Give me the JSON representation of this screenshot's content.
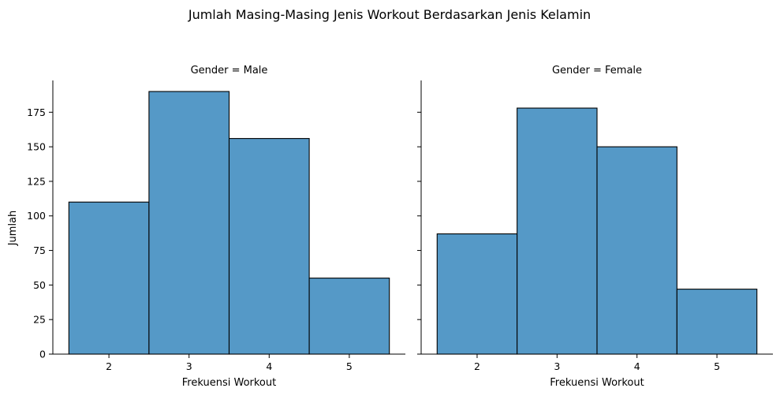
{
  "chart_data": {
    "type": "bar",
    "title": "Jumlah Masing-Masing Jenis Workout Berdasarkan Jenis Kelamin",
    "ylabel": "Jumlah",
    "xlabel": "Frekuensi Workout",
    "categories": [
      "2",
      "3",
      "4",
      "5"
    ],
    "ylim": [
      0,
      198
    ],
    "yticks": [
      0,
      25,
      50,
      75,
      100,
      125,
      150,
      175
    ],
    "xlim": [
      1.3,
      5.7
    ],
    "bar_color": "#5599c7",
    "grid": false,
    "panels": [
      {
        "title": "Gender = Male",
        "values": [
          110,
          190,
          156,
          55
        ]
      },
      {
        "title": "Gender = Female",
        "values": [
          87,
          178,
          150,
          47
        ]
      }
    ]
  }
}
